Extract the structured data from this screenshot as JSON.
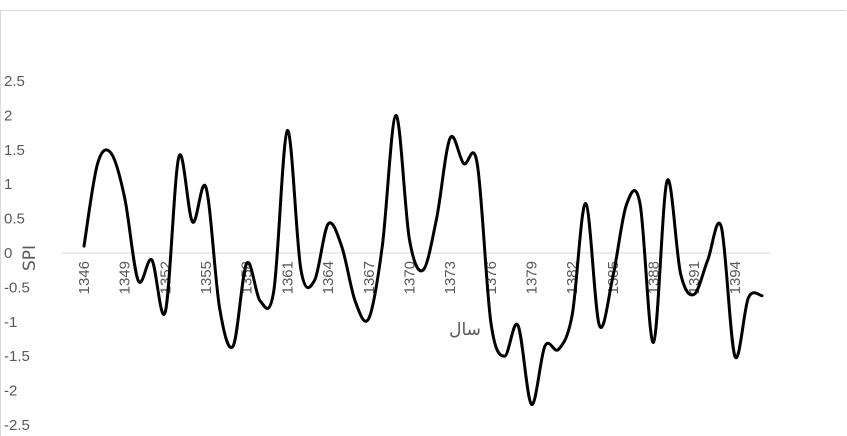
{
  "chart_data": {
    "type": "line",
    "title": "",
    "xlabel": "سال",
    "ylabel": "SPI",
    "ylim": [
      -2.5,
      2.5
    ],
    "y_ticks": [
      "2.5",
      "2",
      "1.5",
      "1",
      "0.5",
      "0",
      "-0.5",
      "-1",
      "-1.5",
      "-2",
      "-2.5"
    ],
    "y_tick_values": [
      2.5,
      2,
      1.5,
      1,
      0.5,
      0,
      -0.5,
      -1,
      -1.5,
      -2,
      -2.5
    ],
    "x_tick_labels": [
      "1346",
      "1349",
      "1352",
      "1355",
      "1358",
      "1361",
      "1364",
      "1367",
      "1370",
      "1373",
      "1376",
      "1379",
      "1382",
      "1385",
      "1388",
      "1391",
      "1394"
    ],
    "grid": false,
    "line_color": "#000000",
    "series": [
      {
        "x": [
          1346,
          1347,
          1348,
          1349,
          1350,
          1351,
          1352,
          1353,
          1354,
          1355,
          1356,
          1357,
          1358,
          1359,
          1360,
          1361,
          1362,
          1363,
          1364,
          1365,
          1366,
          1367,
          1368,
          1369,
          1370,
          1371,
          1372,
          1373,
          1374,
          1375,
          1376,
          1377,
          1378,
          1379,
          1380,
          1381,
          1382,
          1383,
          1384,
          1385,
          1386,
          1387,
          1388,
          1389,
          1390,
          1391,
          1392,
          1393,
          1394,
          1395,
          1396
        ],
        "values": [
          0.1,
          1.3,
          1.45,
          0.8,
          -0.4,
          -0.1,
          -0.85,
          1.4,
          0.45,
          0.95,
          -0.8,
          -1.35,
          -0.15,
          -0.7,
          -0.55,
          1.78,
          -0.25,
          -0.4,
          0.42,
          0.1,
          -0.7,
          -0.95,
          0.1,
          2.0,
          0.2,
          -0.25,
          0.5,
          1.67,
          1.3,
          1.3,
          -1.0,
          -1.5,
          -1.05,
          -2.2,
          -1.35,
          -1.4,
          -0.9,
          0.72,
          -1.05,
          -0.35,
          0.7,
          0.72,
          -1.3,
          1.05,
          -0.3,
          -0.6,
          -0.1,
          0.38,
          -1.5,
          -0.65,
          -0.62
        ]
      }
    ]
  }
}
